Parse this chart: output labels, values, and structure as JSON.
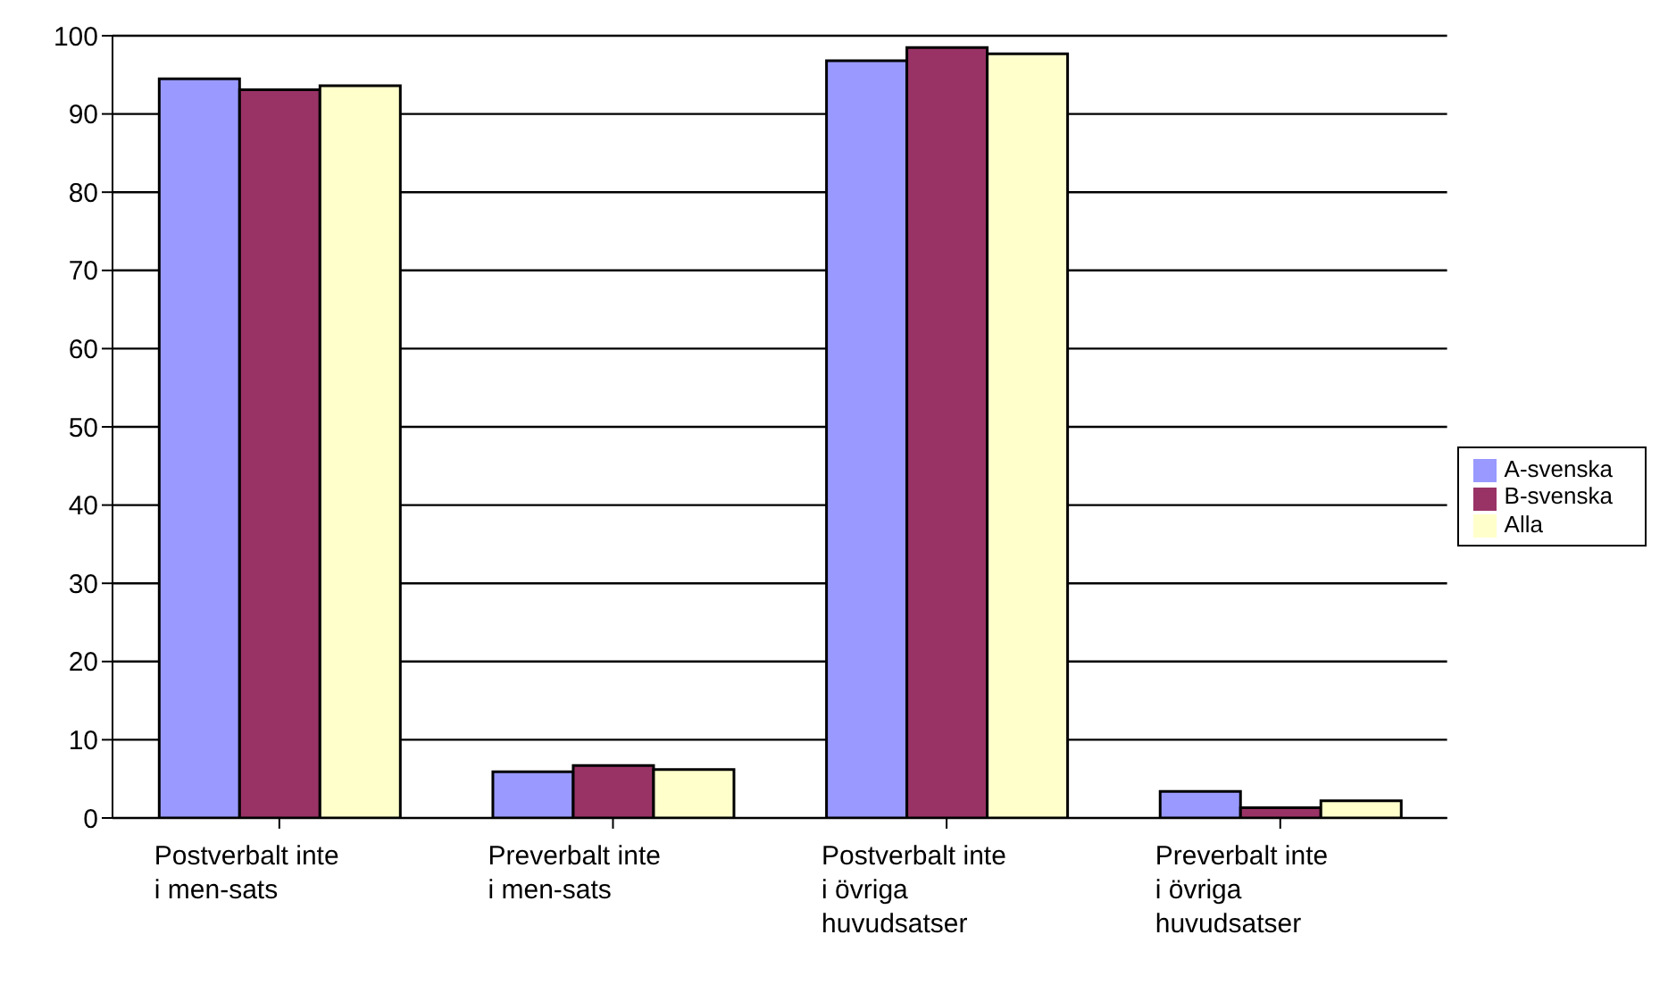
{
  "chart_data": {
    "type": "bar",
    "categories": [
      "Postverbalt inte i men-sats",
      "Preverbalt inte i men-sats",
      "Postverbalt inte i övriga huvudsatser",
      "Preverbalt inte i övriga huvudsatser"
    ],
    "series": [
      {
        "name": "A-svenska",
        "color": "#9999ff",
        "values": [
          94.5,
          5.9,
          96.8,
          3.4
        ]
      },
      {
        "name": "B-svenska",
        "color": "#993366",
        "values": [
          93.1,
          6.7,
          98.5,
          1.3
        ]
      },
      {
        "name": "Alla",
        "color": "#ffffcc",
        "values": [
          93.6,
          6.2,
          97.7,
          2.2
        ]
      }
    ],
    "ylim": [
      0,
      100
    ],
    "yticks": [
      0,
      10,
      20,
      30,
      40,
      50,
      60,
      70,
      80,
      90,
      100
    ],
    "grid": "y",
    "legend": "right"
  }
}
